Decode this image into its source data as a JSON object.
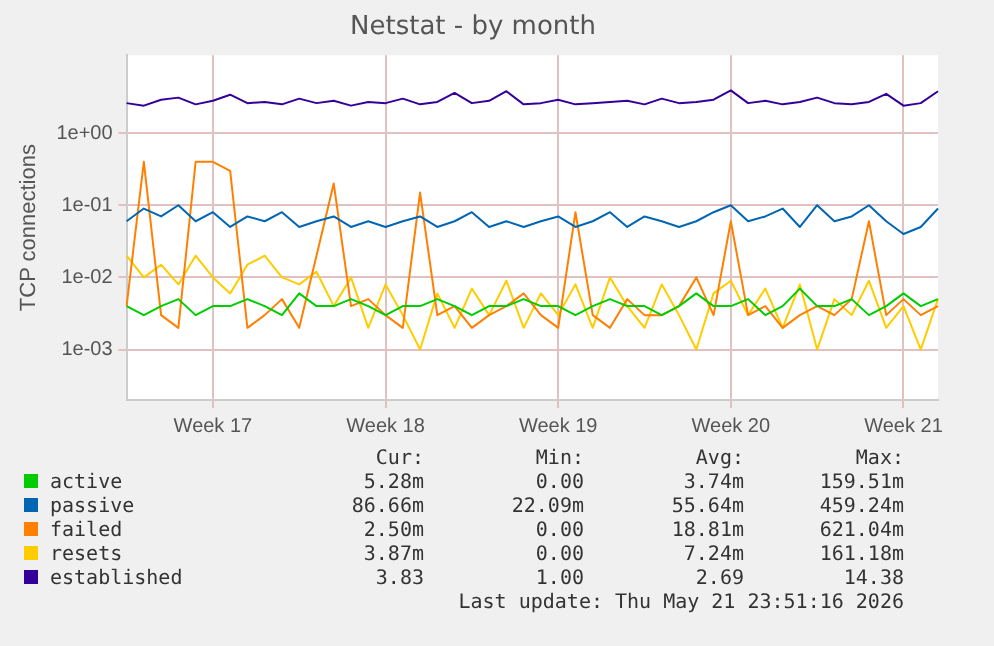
{
  "chart_data": {
    "type": "line",
    "title": "Netstat - by month",
    "ylabel": "TCP connections",
    "log": true,
    "grid": true,
    "legend": "bottom",
    "marker": "none",
    "categories": [
      null,
      null,
      null,
      null,
      null,
      "Week 17",
      null,
      null,
      null,
      null,
      null,
      null,
      null,
      null,
      null,
      "Week 18",
      null,
      null,
      null,
      null,
      null,
      null,
      null,
      null,
      null,
      "Week 19",
      null,
      null,
      null,
      null,
      null,
      null,
      null,
      null,
      null,
      "Week 20",
      null,
      null,
      null,
      null,
      null,
      null,
      null,
      null,
      null,
      "Week 21",
      null,
      null
    ],
    "ylim": [
      0.0002,
      12
    ],
    "yticks": [
      {
        "value": 0.001,
        "label": "1e-03"
      },
      {
        "value": 0.01,
        "label": "1e-02"
      },
      {
        "value": 0.1,
        "label": "1e-01"
      },
      {
        "value": 1,
        "label": "1e+00"
      }
    ],
    "series": [
      {
        "name": "active",
        "color": "#00cc00",
        "values": [
          0.004,
          0.003,
          0.004,
          0.005,
          0.003,
          0.004,
          0.004,
          0.005,
          0.004,
          0.003,
          0.006,
          0.004,
          0.004,
          0.005,
          0.004,
          0.003,
          0.004,
          0.004,
          0.005,
          0.004,
          0.003,
          0.004,
          0.004,
          0.005,
          0.004,
          0.004,
          0.003,
          0.004,
          0.005,
          0.004,
          0.004,
          0.003,
          0.004,
          0.006,
          0.004,
          0.004,
          0.005,
          0.003,
          0.004,
          0.007,
          0.004,
          0.004,
          0.005,
          0.003,
          0.004,
          0.006,
          0.004,
          0.005
        ]
      },
      {
        "name": "passive",
        "color": "#0066b3",
        "values": [
          0.06,
          0.09,
          0.07,
          0.1,
          0.06,
          0.08,
          0.05,
          0.07,
          0.06,
          0.08,
          0.05,
          0.06,
          0.07,
          0.05,
          0.06,
          0.05,
          0.06,
          0.07,
          0.05,
          0.06,
          0.08,
          0.05,
          0.06,
          0.05,
          0.06,
          0.07,
          0.05,
          0.06,
          0.08,
          0.05,
          0.07,
          0.06,
          0.05,
          0.06,
          0.08,
          0.1,
          0.06,
          0.07,
          0.09,
          0.05,
          0.1,
          0.06,
          0.07,
          0.1,
          0.06,
          0.04,
          0.05,
          0.09
        ]
      },
      {
        "name": "failed",
        "color": "#ff8000",
        "values": [
          0.004,
          0.4,
          0.003,
          0.002,
          0.4,
          0.4,
          0.3,
          0.002,
          0.003,
          0.005,
          0.002,
          0.02,
          0.2,
          0.004,
          0.005,
          0.003,
          0.002,
          0.15,
          0.003,
          0.004,
          0.002,
          0.003,
          0.004,
          0.006,
          0.003,
          0.002,
          0.08,
          0.003,
          0.002,
          0.005,
          0.003,
          0.003,
          0.004,
          0.01,
          0.003,
          0.06,
          0.003,
          0.004,
          0.002,
          0.003,
          0.004,
          0.003,
          0.005,
          0.06,
          0.003,
          0.005,
          0.003,
          0.004
        ]
      },
      {
        "name": "resets",
        "color": "#ffcc00",
        "values": [
          0.02,
          0.01,
          0.015,
          0.008,
          0.02,
          0.01,
          0.006,
          0.015,
          0.02,
          0.01,
          0.008,
          0.012,
          0.004,
          0.01,
          0.002,
          0.008,
          0.003,
          0.001,
          0.006,
          0.002,
          0.007,
          0.003,
          0.009,
          0.002,
          0.006,
          0.003,
          0.008,
          0.002,
          0.01,
          0.004,
          0.002,
          0.008,
          0.003,
          0.001,
          0.006,
          0.009,
          0.003,
          0.007,
          0.002,
          0.008,
          0.001,
          0.005,
          0.003,
          0.009,
          0.002,
          0.004,
          0.001,
          0.005
        ]
      },
      {
        "name": "established",
        "color": "#330099",
        "values": [
          2.6,
          2.4,
          2.9,
          3.1,
          2.5,
          2.8,
          3.4,
          2.6,
          2.7,
          2.5,
          3.0,
          2.6,
          2.8,
          2.4,
          2.7,
          2.6,
          3.0,
          2.5,
          2.7,
          3.6,
          2.6,
          2.8,
          3.8,
          2.5,
          2.6,
          2.9,
          2.5,
          2.6,
          2.7,
          2.8,
          2.5,
          3.0,
          2.6,
          2.7,
          2.9,
          3.9,
          2.6,
          2.8,
          2.5,
          2.7,
          3.1,
          2.6,
          2.5,
          2.7,
          3.5,
          2.4,
          2.6,
          3.8
        ]
      }
    ],
    "annotations": [
      "Cur:",
      "Min:",
      "Avg:",
      "Max:",
      "5.28m",
      "0.00",
      "3.74m",
      "159.51m",
      "86.66m",
      "22.09m",
      "55.64m",
      "459.24m",
      "2.50m",
      "0.00",
      "18.81m",
      "621.04m",
      "3.87m",
      "0.00",
      "7.24m",
      "161.18m",
      "3.83",
      "1.00",
      "2.69",
      "14.38",
      "Last update: Thu May 21 23:51:16 2026"
    ]
  }
}
